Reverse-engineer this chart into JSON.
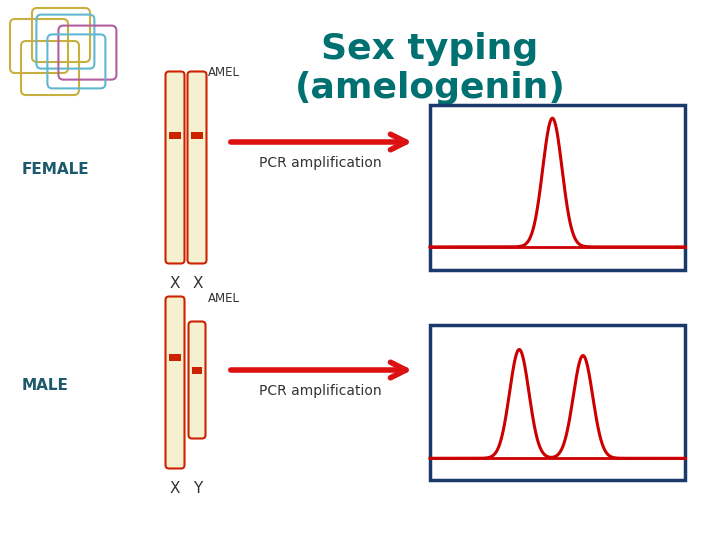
{
  "title": "Sex typing\n(amelogenin)",
  "title_color": "#007070",
  "title_fontsize": 26,
  "bg_color": "#ffffff",
  "chrom_fill": "#f5f0d0",
  "chrom_edge": "#cc2200",
  "cent_color": "#cc2200",
  "arrow_color": "#dd1111",
  "box_edge_color": "#1a3a6b",
  "peak_color": "#cc0000",
  "label_color": "#1a5a6b",
  "text_color": "#333333",
  "female_label": "FEMALE",
  "male_label": "MALE",
  "amel_label": "AMEL",
  "pcr_label": "PCR amplification",
  "x_label": "X",
  "y_label": "Y"
}
